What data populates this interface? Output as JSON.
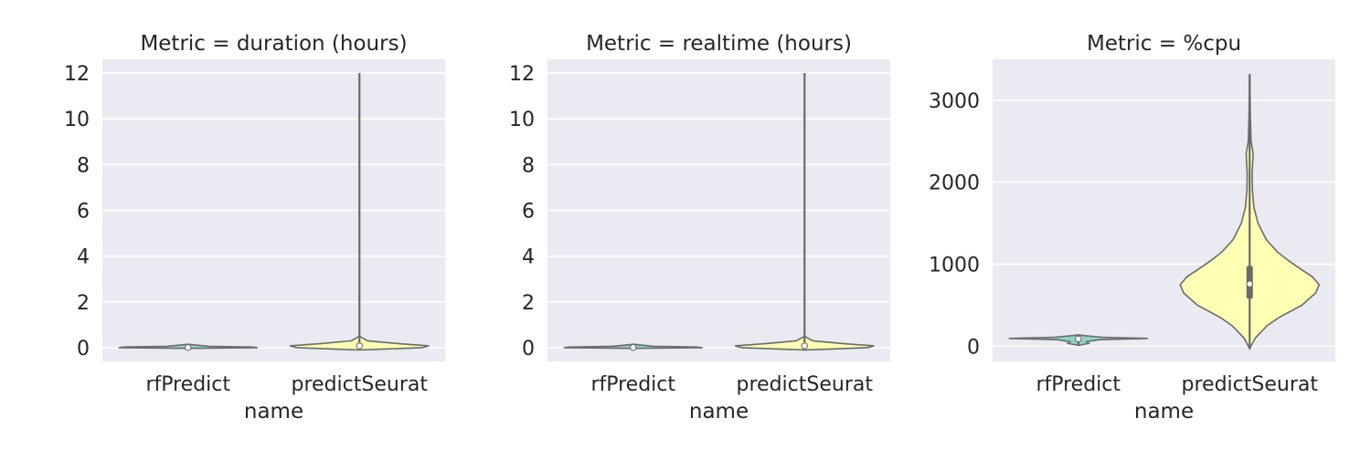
{
  "chart_data": [
    {
      "type": "violin",
      "title": "Metric = duration (hours)",
      "xlabel": "name",
      "ylabel": "",
      "categories": [
        "rfPredict",
        "predictSeurat"
      ],
      "ylim": [
        -0.6,
        12.6
      ],
      "yticks": [
        0,
        2,
        4,
        6,
        8,
        10,
        12
      ],
      "grid": true,
      "series": [
        {
          "category": "rfPredict",
          "color": "#8dd3c7",
          "min": -0.02,
          "max": 0.15,
          "q1": 0.0,
          "median": 0.01,
          "q3": 0.03,
          "density": [
            [
              -0.03,
              0.0
            ],
            [
              0.0,
              1.0
            ],
            [
              0.03,
              0.9
            ],
            [
              0.06,
              0.3
            ],
            [
              0.15,
              0.0
            ]
          ]
        },
        {
          "category": "predictSeurat",
          "color": "#ffffb3",
          "min": -0.05,
          "max": 12.0,
          "q1": 0.02,
          "median": 0.08,
          "q3": 0.2,
          "density": [
            [
              -0.1,
              0.0
            ],
            [
              0.0,
              0.9
            ],
            [
              0.08,
              1.0
            ],
            [
              0.18,
              0.55
            ],
            [
              0.3,
              0.12
            ],
            [
              0.5,
              0.0
            ]
          ]
        }
      ]
    },
    {
      "type": "violin",
      "title": "Metric = realtime (hours)",
      "xlabel": "name",
      "ylabel": "",
      "categories": [
        "rfPredict",
        "predictSeurat"
      ],
      "ylim": [
        -0.6,
        12.6
      ],
      "yticks": [
        0,
        2,
        4,
        6,
        8,
        10,
        12
      ],
      "grid": true,
      "series": [
        {
          "category": "rfPredict",
          "color": "#8dd3c7",
          "min": -0.02,
          "max": 0.15,
          "q1": 0.0,
          "median": 0.01,
          "q3": 0.03,
          "density": [
            [
              -0.03,
              0.0
            ],
            [
              0.0,
              1.0
            ],
            [
              0.03,
              0.9
            ],
            [
              0.06,
              0.3
            ],
            [
              0.15,
              0.0
            ]
          ]
        },
        {
          "category": "predictSeurat",
          "color": "#ffffb3",
          "min": -0.05,
          "max": 12.0,
          "q1": 0.02,
          "median": 0.08,
          "q3": 0.2,
          "density": [
            [
              -0.1,
              0.0
            ],
            [
              0.0,
              0.9
            ],
            [
              0.08,
              1.0
            ],
            [
              0.18,
              0.55
            ],
            [
              0.3,
              0.12
            ],
            [
              0.5,
              0.0
            ]
          ]
        }
      ]
    },
    {
      "type": "violin",
      "title": "Metric = %cpu",
      "xlabel": "name",
      "ylabel": "",
      "categories": [
        "rfPredict",
        "predictSeurat"
      ],
      "ylim": [
        -185,
        3500
      ],
      "yticks": [
        0,
        1000,
        2000,
        3000
      ],
      "grid": true,
      "series": [
        {
          "category": "rfPredict",
          "color": "#8dd3c7",
          "min": 10,
          "max": 140,
          "q1": 55,
          "median": 90,
          "q3": 98,
          "density": [
            [
              10,
              0.0
            ],
            [
              35,
              0.15
            ],
            [
              55,
              0.12
            ],
            [
              80,
              0.3
            ],
            [
              95,
              1.0
            ],
            [
              110,
              0.35
            ],
            [
              130,
              0.08
            ],
            [
              140,
              0.0
            ]
          ]
        },
        {
          "category": "predictSeurat",
          "color": "#ffffb3",
          "min": -30,
          "max": 3320,
          "q1": 580,
          "median": 760,
          "q3": 980,
          "density": [
            [
              -30,
              0.0
            ],
            [
              100,
              0.08
            ],
            [
              250,
              0.25
            ],
            [
              350,
              0.42
            ],
            [
              500,
              0.75
            ],
            [
              650,
              0.95
            ],
            [
              750,
              1.0
            ],
            [
              850,
              0.9
            ],
            [
              950,
              0.72
            ],
            [
              1050,
              0.55
            ],
            [
              1150,
              0.4
            ],
            [
              1300,
              0.24
            ],
            [
              1500,
              0.12
            ],
            [
              1700,
              0.06
            ],
            [
              1900,
              0.04
            ],
            [
              2100,
              0.035
            ],
            [
              2350,
              0.05
            ],
            [
              2500,
              0.02
            ],
            [
              2800,
              0.01
            ],
            [
              3100,
              0.005
            ],
            [
              3320,
              0.0
            ]
          ]
        }
      ]
    }
  ]
}
